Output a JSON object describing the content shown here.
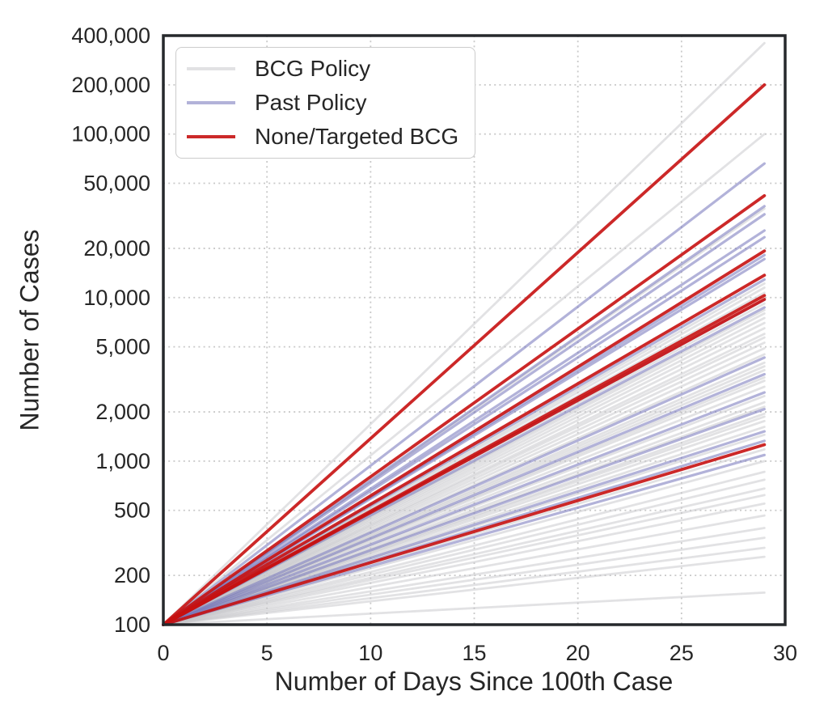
{
  "chart_data": {
    "type": "line",
    "title": "",
    "xlabel": "Number of Days Since 100th Case",
    "ylabel": "Number of Cases",
    "x_scale": "linear",
    "y_scale": "log",
    "xlim": [
      0,
      30
    ],
    "ylim": [
      100,
      400000
    ],
    "x_ticks": [
      0,
      5,
      10,
      15,
      20,
      25,
      30
    ],
    "x_tick_labels": [
      "0",
      "5",
      "10",
      "15",
      "20",
      "25",
      "30"
    ],
    "y_ticks": [
      100,
      200,
      500,
      1000,
      2000,
      5000,
      10000,
      20000,
      50000,
      100000,
      200000,
      400000
    ],
    "y_tick_labels": [
      "100",
      "200",
      "500",
      "1,000",
      "2,000",
      "5,000",
      "10,000",
      "20,000",
      "50,000",
      "100,000",
      "200,000",
      "400,000"
    ],
    "grid": {
      "visible": true,
      "style": "dotted",
      "color": "#c9c9c9"
    },
    "frame_color": "#26292c",
    "text_color": "#262626",
    "legend": {
      "position": "upper-left",
      "items": [
        {
          "label": "BCG Policy",
          "color": "#e2e2e4"
        },
        {
          "label": "Past Policy",
          "color": "#b2b2d9"
        },
        {
          "label": "None/Targeted BCG",
          "color": "#cc2929"
        }
      ]
    },
    "series_start": {
      "x": 0,
      "y": 100
    },
    "series_end_x": 29,
    "series": [
      {
        "name": "BCG Policy",
        "stroke": "rgba(197,197,201,0.5)",
        "stroke_width": 2.8,
        "end_values": [
          360000,
          100000,
          35000,
          12200,
          11500,
          10700,
          9200,
          8400,
          8000,
          7500,
          7000,
          6500,
          6000,
          5700,
          5300,
          4900,
          4500,
          4000,
          3800,
          3600,
          3250,
          3100,
          2850,
          2500,
          2290,
          2150,
          1950,
          1870,
          1760,
          1620,
          1450,
          1180,
          1000,
          860,
          770,
          680,
          620,
          550,
          465,
          390,
          340,
          295,
          260,
          157
        ]
      },
      {
        "name": "Past Policy",
        "stroke": "rgba(115,115,186,0.55)",
        "stroke_width": 3.2,
        "end_values": [
          66000,
          36200,
          32300,
          25700,
          23400,
          18200,
          17200,
          12900,
          9700,
          8700,
          4300,
          3400,
          2630,
          2080,
          1520,
          1330,
          1090
        ]
      },
      {
        "name": "None/Targeted BCG",
        "stroke": "rgba(198,17,17,0.9)",
        "stroke_width": 3.8,
        "end_values": [
          200000,
          42000,
          19300,
          13700,
          10300,
          9750,
          1260
        ]
      }
    ]
  }
}
